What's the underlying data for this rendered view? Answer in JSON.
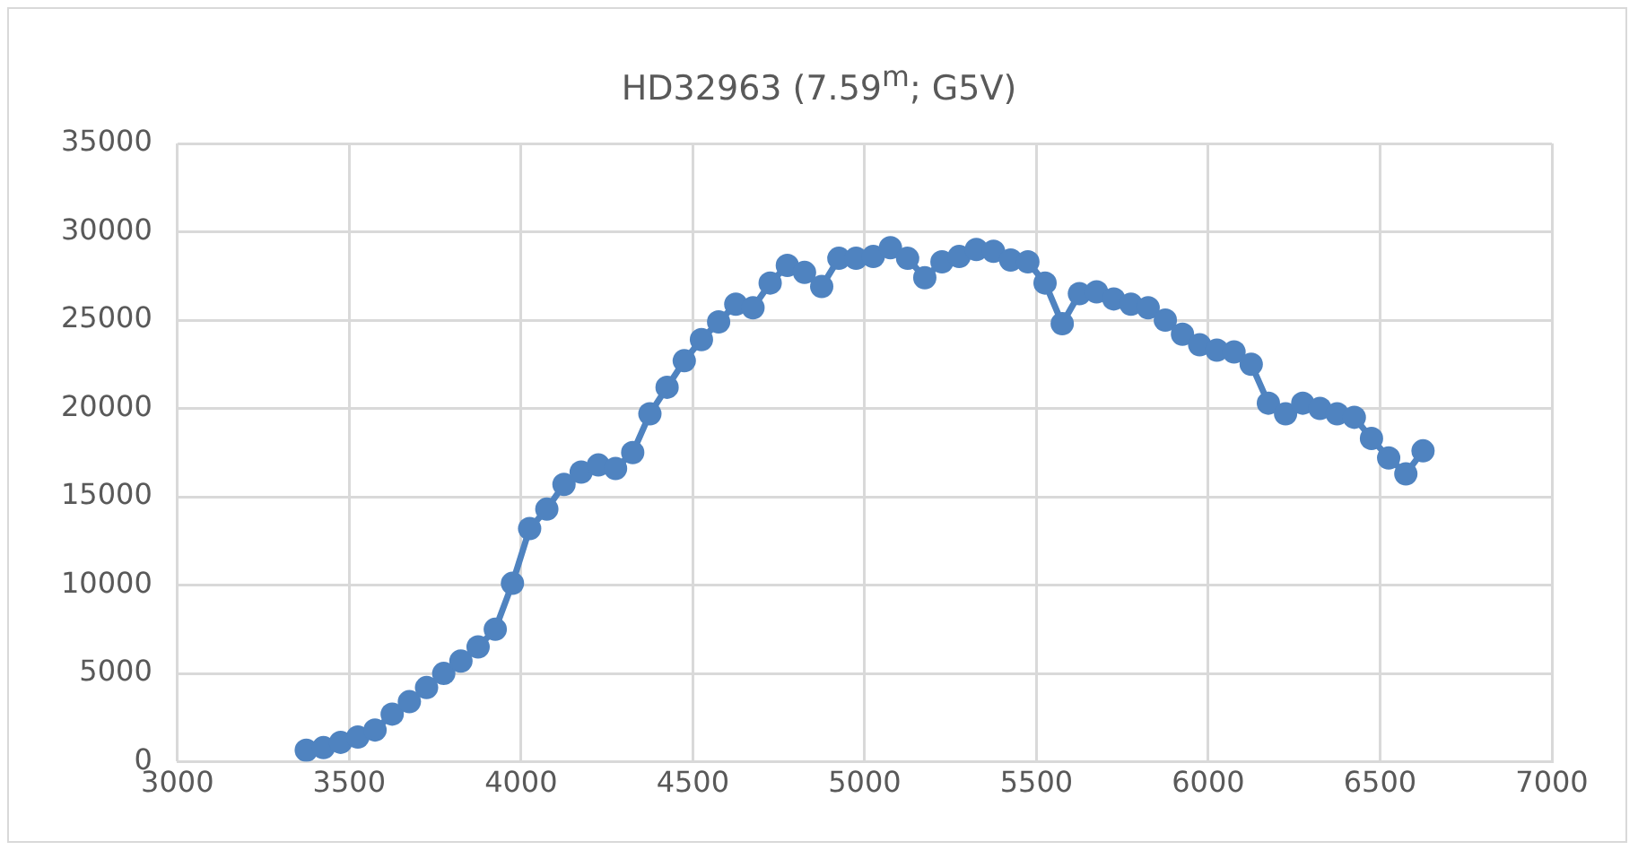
{
  "chart_data": {
    "type": "line",
    "title": "HD32963 (7.59$^{m}$; G5V)",
    "x": [
      3375,
      3425,
      3475,
      3525,
      3575,
      3625,
      3675,
      3725,
      3775,
      3825,
      3875,
      3925,
      3975,
      4025,
      4075,
      4125,
      4175,
      4225,
      4275,
      4325,
      4375,
      4425,
      4475,
      4525,
      4575,
      4625,
      4675,
      4725,
      4775,
      4825,
      4875,
      4925,
      4975,
      5025,
      5075,
      5125,
      5175,
      5225,
      5275,
      5325,
      5375,
      5425,
      5475,
      5525,
      5575,
      5625,
      5675,
      5725,
      5775,
      5825,
      5875,
      5925,
      5975,
      6025,
      6075,
      6125,
      6175,
      6225,
      6275,
      6325,
      6375,
      6425,
      6475,
      6525,
      6575,
      6625
    ],
    "series": [
      {
        "color": "#4f83c0",
        "values": [
          650,
          800,
          1100,
          1400,
          1800,
          2700,
          3400,
          4200,
          5000,
          5700,
          6500,
          7500,
          10100,
          13200,
          14300,
          15700,
          16400,
          16800,
          16600,
          17500,
          19700,
          21200,
          22700,
          23900,
          24900,
          25900,
          25700,
          27100,
          28100,
          27700,
          26900,
          28500,
          28500,
          28600,
          29100,
          28500,
          27400,
          28300,
          28600,
          29000,
          28900,
          28400,
          28300,
          27100,
          24800,
          26500,
          26600,
          26200,
          25900,
          25700,
          25000,
          24200,
          23600,
          23300,
          23200,
          22500,
          20300,
          19700,
          20300,
          20000,
          19700,
          19500,
          18300,
          17200,
          16300,
          17600
        ]
      }
    ],
    "xlim": [
      3000,
      7000
    ],
    "xticks": [
      3000,
      3500,
      4000,
      4500,
      5000,
      5500,
      6000,
      6500,
      7000
    ],
    "ylim": [
      0,
      35000
    ],
    "yticks": [
      0,
      5000,
      10000,
      15000,
      20000,
      25000,
      30000,
      35000
    ],
    "grid": true,
    "legend": false,
    "marker": "circle",
    "line_style": "solid"
  }
}
